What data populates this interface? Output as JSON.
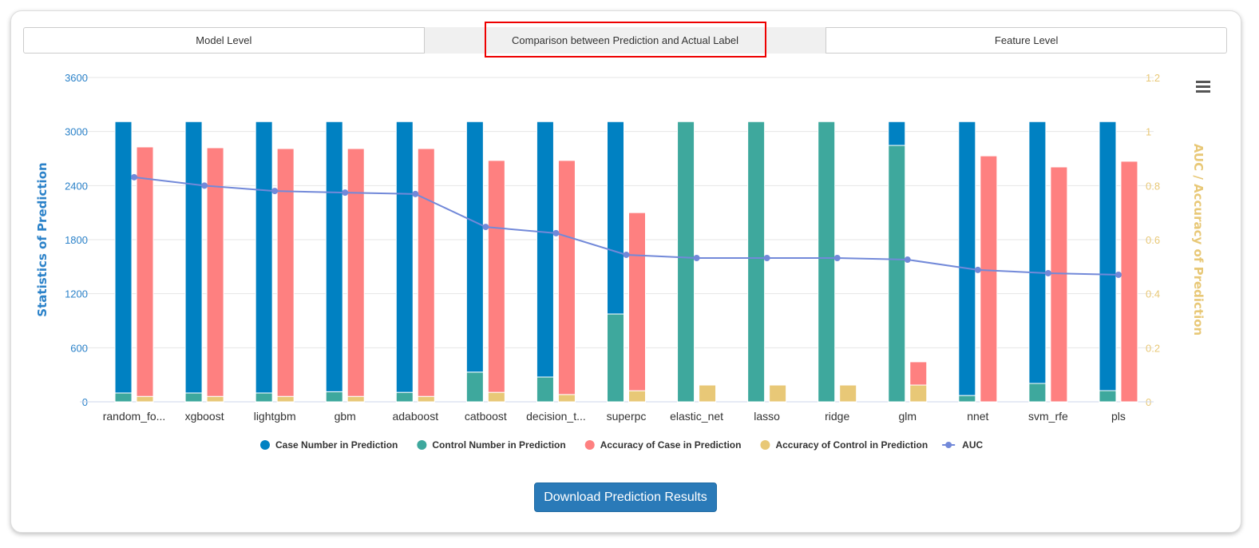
{
  "tabs": [
    {
      "label": "Model Level"
    },
    {
      "label": "Comparison between Prediction and Actual Label"
    },
    {
      "label": "Feature Level"
    }
  ],
  "active_tab": 1,
  "download_button": "Download Prediction Results",
  "menu_icon": "hamburger-menu-icon",
  "chart_data": {
    "type": "bar",
    "categories": [
      "random_fo...",
      "xgboost",
      "lightgbm",
      "gbm",
      "adaboost",
      "catboost",
      "decision_t...",
      "superpc",
      "elastic_net",
      "lasso",
      "ridge",
      "glm",
      "nnet",
      "svm_rfe",
      "pls"
    ],
    "ylabel": "Statistics of Prediction",
    "ylabel_right": "AUC / Accuracy of Prediction",
    "ylim": [
      0,
      3600
    ],
    "yticks": [
      "0",
      "600",
      "1200",
      "1800",
      "2400",
      "3000",
      "3600"
    ],
    "ylim_right": [
      0,
      1.2
    ],
    "yticks_right": [
      "0",
      "0.2",
      "0.4",
      "0.6",
      "0.8",
      "1",
      "1.2"
    ],
    "grid": true,
    "legend_position": "bottom",
    "series": [
      {
        "name": "Case Number in Prediction",
        "kind": "bar",
        "stack": "count",
        "axis": "left",
        "color": "#0081c2",
        "values": [
          3012,
          3012,
          3012,
          2998,
          3005,
          2780,
          2835,
          2135,
          0,
          0,
          0,
          264,
          3040,
          2906,
          2986
        ]
      },
      {
        "name": "Control Number in Prediction",
        "kind": "bar",
        "stack": "count",
        "axis": "left",
        "color": "#3ea89d",
        "values": [
          98,
          98,
          98,
          112,
          105,
          330,
          275,
          975,
          3110,
          3110,
          3110,
          2846,
          70,
          204,
          124
        ]
      },
      {
        "name": "Accuracy of Case in Prediction",
        "kind": "bar",
        "stack": "acc",
        "axis": "right",
        "color": "#fe8080",
        "values": [
          0.923,
          0.92,
          0.917,
          0.917,
          0.917,
          0.858,
          0.866,
          0.659,
          0,
          0,
          0,
          0.086,
          0.91,
          0.869,
          0.89
        ]
      },
      {
        "name": "Accuracy of Control in Prediction",
        "kind": "bar",
        "stack": "acc",
        "axis": "right",
        "color": "#e8c877",
        "values": [
          0.02,
          0.02,
          0.02,
          0.02,
          0.02,
          0.035,
          0.027,
          0.041,
          0.062,
          0.062,
          0.062,
          0.062,
          0,
          0,
          0
        ]
      },
      {
        "name": "AUC",
        "kind": "line",
        "axis": "right",
        "color": "#7289d9",
        "values": [
          0.831,
          0.8,
          0.78,
          0.774,
          0.769,
          0.647,
          0.624,
          0.544,
          0.532,
          0.532,
          0.532,
          0.526,
          0.488,
          0.476,
          0.47
        ]
      }
    ]
  }
}
